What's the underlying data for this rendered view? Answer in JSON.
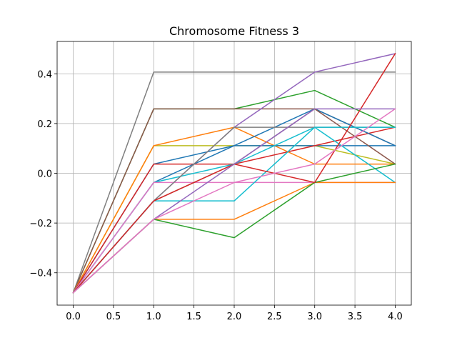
{
  "chart_data": {
    "type": "line",
    "title": "Chromosome Fitness 3",
    "xlabel": "",
    "ylabel": "",
    "x": [
      0,
      1,
      2,
      3,
      4
    ],
    "xlim": [
      -0.2,
      4.2
    ],
    "ylim": [
      -0.53,
      0.53
    ],
    "x_ticks": [
      0.0,
      0.5,
      1.0,
      1.5,
      2.0,
      2.5,
      3.0,
      3.5,
      4.0
    ],
    "x_tick_labels": [
      "0.0",
      "0.5",
      "1.0",
      "1.5",
      "2.0",
      "2.5",
      "3.0",
      "3.5",
      "4.0"
    ],
    "y_ticks": [
      -0.4,
      -0.2,
      0.0,
      0.2,
      0.4
    ],
    "y_tick_labels": [
      "−0.4",
      "−0.2",
      "0.0",
      "0.2",
      "0.4"
    ],
    "grid": true,
    "legend": "none",
    "series": [
      {
        "color": "#7f7f7f",
        "values": [
          -0.48,
          0.407,
          0.407,
          0.407,
          0.407
        ]
      },
      {
        "color": "#2ca02c",
        "values": [
          -0.48,
          0.259,
          0.259,
          0.333,
          0.185
        ]
      },
      {
        "color": "#8c564b",
        "values": [
          -0.48,
          0.259,
          0.259,
          0.259,
          0.111
        ]
      },
      {
        "color": "#bcbd22",
        "values": [
          -0.48,
          0.111,
          0.111,
          0.111,
          0.037
        ]
      },
      {
        "color": "#ff7f0e",
        "values": [
          -0.48,
          0.111,
          0.185,
          0.037,
          0.037
        ]
      },
      {
        "color": "#1f77b4",
        "values": [
          -0.48,
          0.037,
          0.111,
          0.111,
          0.111
        ]
      },
      {
        "color": "#d62728",
        "values": [
          -0.48,
          0.037,
          0.037,
          0.111,
          0.185
        ]
      },
      {
        "color": "#9467bd",
        "values": [
          -0.48,
          -0.111,
          0.185,
          0.407,
          0.481
        ]
      },
      {
        "color": "#1f77b4",
        "values": [
          -0.48,
          -0.037,
          0.111,
          0.259,
          0.111
        ]
      },
      {
        "color": "#17becf",
        "values": [
          -0.48,
          -0.037,
          0.037,
          0.185,
          -0.037
        ]
      },
      {
        "color": "#e377c2",
        "values": [
          -0.48,
          -0.037,
          -0.037,
          -0.037,
          -0.037
        ]
      },
      {
        "color": "#7f7f7f",
        "values": [
          -0.48,
          -0.111,
          0.185,
          0.185,
          0.185
        ]
      },
      {
        "color": "#8c564b",
        "values": [
          -0.48,
          -0.111,
          0.037,
          0.259,
          0.037
        ]
      },
      {
        "color": "#17becf",
        "values": [
          -0.48,
          -0.111,
          -0.111,
          0.185,
          0.185
        ]
      },
      {
        "color": "#ff7f0e",
        "values": [
          -0.48,
          -0.185,
          -0.185,
          -0.037,
          -0.037
        ]
      },
      {
        "color": "#2ca02c",
        "values": [
          -0.48,
          -0.185,
          -0.259,
          -0.037,
          0.037
        ]
      },
      {
        "color": "#d62728",
        "values": [
          -0.48,
          -0.111,
          0.037,
          -0.037,
          0.481
        ]
      },
      {
        "color": "#9467bd",
        "values": [
          -0.48,
          -0.185,
          0.037,
          0.259,
          0.259
        ]
      },
      {
        "color": "#e377c2",
        "values": [
          -0.48,
          -0.185,
          -0.037,
          0.037,
          0.259
        ]
      }
    ]
  }
}
